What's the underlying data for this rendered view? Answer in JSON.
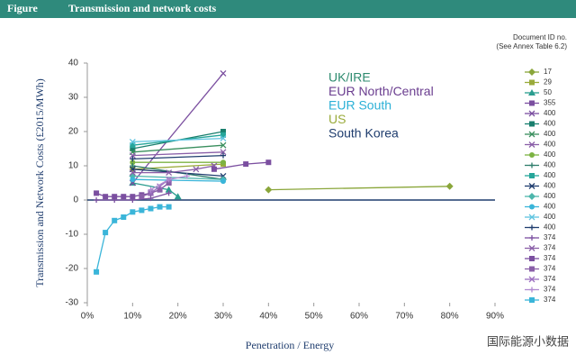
{
  "header": {
    "label": "Figure",
    "title": "Transmission and network costs"
  },
  "watermark": "国际能源小数据",
  "chart_data": {
    "type": "line",
    "y_label": "Transmission and Network Costs (£2015/MWh)",
    "x_label": "Penetration / Energy",
    "legend_title": [
      "Document ID no.",
      "(See Annex Table 6.2)"
    ],
    "legend": "right",
    "xlim": [
      0,
      90
    ],
    "xticks": [
      {
        "value": 0,
        "label": "0%"
      },
      {
        "value": 10,
        "label": "10%"
      },
      {
        "value": 20,
        "label": "20%"
      },
      {
        "value": 30,
        "label": "30%"
      },
      {
        "value": 40,
        "label": "40%"
      },
      {
        "value": 50,
        "label": "50%"
      },
      {
        "value": 60,
        "label": "60%"
      },
      {
        "value": 70,
        "label": "70%"
      },
      {
        "value": 80,
        "label": "80%"
      },
      {
        "value": 90,
        "label": "90%"
      }
    ],
    "ylim": [
      -30,
      40
    ],
    "yticks": [
      -30,
      -20,
      -10,
      0,
      10,
      20,
      30,
      40
    ],
    "annotations": [
      {
        "text": "UK/IRE",
        "color": "#2e8b6f"
      },
      {
        "text": "EUR North/Central",
        "color": "#6a3d8f"
      },
      {
        "text": "EUR South",
        "color": "#2bb0d6"
      },
      {
        "text": "US",
        "color": "#9aab3b"
      },
      {
        "text": "South Korea",
        "color": "#1f3d6e"
      }
    ],
    "series": [
      {
        "name": "17",
        "color": "#8aa63a",
        "marker": "diamond",
        "x": [
          40,
          80
        ],
        "values": [
          3,
          4
        ]
      },
      {
        "name": "29",
        "color": "#9aab3b",
        "marker": "square",
        "x": [
          10,
          30
        ],
        "values": [
          9,
          10.5
        ]
      },
      {
        "name": "50",
        "color": "#2a9d8f",
        "marker": "triangle",
        "x": [
          10,
          18,
          20
        ],
        "values": [
          5,
          3,
          1
        ]
      },
      {
        "name": "355",
        "color": "#7b4fa0",
        "marker": "square",
        "x": [
          2,
          4,
          6,
          8,
          10,
          12,
          14,
          16,
          18
        ],
        "values": [
          2,
          1,
          1,
          1,
          1,
          1.5,
          2,
          3,
          5
        ]
      },
      {
        "name": "400",
        "color": "#7b4fa0",
        "marker": "x",
        "x": [
          10,
          30
        ],
        "values": [
          5,
          37
        ]
      },
      {
        "name": "400",
        "color": "#1a7f6e",
        "marker": "square",
        "x": [
          10,
          30
        ],
        "values": [
          15,
          20
        ]
      },
      {
        "name": "400",
        "color": "#3a8f5e",
        "marker": "x",
        "x": [
          10,
          30
        ],
        "values": [
          14,
          16
        ]
      },
      {
        "name": "400",
        "color": "#8a5fa8",
        "marker": "x",
        "x": [
          10,
          30
        ],
        "values": [
          13,
          14
        ]
      },
      {
        "name": "400",
        "color": "#7cb342",
        "marker": "circle",
        "x": [
          10,
          30
        ],
        "values": [
          11,
          11
        ]
      },
      {
        "name": "400",
        "color": "#2e7d6b",
        "marker": "plus",
        "x": [
          10,
          30
        ],
        "values": [
          10,
          6
        ]
      },
      {
        "name": "400",
        "color": "#26a69a",
        "marker": "square",
        "x": [
          10,
          30
        ],
        "values": [
          16,
          19
        ]
      },
      {
        "name": "400",
        "color": "#1f3d6e",
        "marker": "x",
        "x": [
          10,
          30
        ],
        "values": [
          9,
          7
        ]
      },
      {
        "name": "400",
        "color": "#4db6ac",
        "marker": "diamond",
        "x": [
          10,
          30
        ],
        "values": [
          7,
          6
        ]
      },
      {
        "name": "400",
        "color": "#3ab5d9",
        "marker": "circle",
        "x": [
          10,
          30
        ],
        "values": [
          6,
          5.5
        ]
      },
      {
        "name": "400",
        "color": "#5fc4e0",
        "marker": "x",
        "x": [
          10,
          30
        ],
        "values": [
          17,
          18
        ]
      },
      {
        "name": "400",
        "color": "#1f3d6e",
        "marker": "plus",
        "x": [
          10,
          30
        ],
        "values": [
          12,
          13
        ]
      },
      {
        "name": "374",
        "color": "#7b4fa0",
        "marker": "plus",
        "x": [
          2,
          6,
          10,
          14,
          18
        ],
        "values": [
          0,
          0,
          0,
          0.5,
          2
        ]
      },
      {
        "name": "374",
        "color": "#8a5fa8",
        "marker": "x",
        "x": [
          10,
          18,
          24,
          28
        ],
        "values": [
          8,
          8,
          9,
          10
        ]
      },
      {
        "name": "374",
        "color": "#7b4fa0",
        "marker": "square",
        "x": [
          28,
          35,
          40
        ],
        "values": [
          9,
          10.5,
          11
        ]
      },
      {
        "name": "374",
        "color": "#8a5fa8",
        "marker": "square",
        "x": [
          12,
          14,
          16,
          18
        ],
        "values": [
          1,
          2,
          3,
          5
        ]
      },
      {
        "name": "374",
        "color": "#9c6fc0",
        "marker": "x",
        "x": [
          14,
          16,
          18
        ],
        "values": [
          2,
          4,
          6
        ]
      },
      {
        "name": "374",
        "color": "#b08ad0",
        "marker": "plus",
        "x": [
          14,
          18,
          22
        ],
        "values": [
          3,
          6,
          7
        ]
      },
      {
        "name": "374",
        "color": "#3ab5d9",
        "marker": "square",
        "x": [
          2,
          4,
          6,
          8,
          10,
          12,
          14,
          16,
          18
        ],
        "values": [
          -21,
          -9.5,
          -6,
          -5,
          -3.5,
          -3,
          -2.5,
          -2,
          -2
        ]
      }
    ]
  }
}
